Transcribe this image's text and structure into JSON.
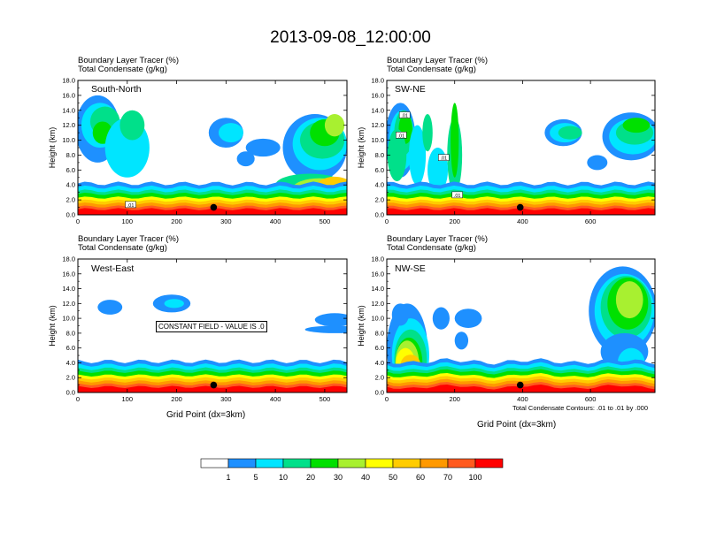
{
  "title": "2013-09-08_12:00:00",
  "panel_subtitle_1": "Boundary Layer Tracer   (%)",
  "panel_subtitle_2": "Total Condensate   (g/kg)",
  "xlabel": "Grid Point (dx=3km)",
  "footnote": "Total Condensate Contours: .01 to .01 by .000",
  "constant_field_text": "CONSTANT FIELD - VALUE IS .0",
  "colorbar": {
    "labels": [
      "1",
      "5",
      "10",
      "20",
      "30",
      "40",
      "50",
      "60",
      "70",
      "100"
    ],
    "colors": [
      "#ffffff",
      "#1e90ff",
      "#00e5ff",
      "#00e08a",
      "#00e000",
      "#a8f030",
      "#ffff00",
      "#ffcc00",
      "#ff9900",
      "#ff5a1f",
      "#ff0000"
    ]
  },
  "chart_data": [
    {
      "type": "heatmap",
      "panel": "South-North",
      "ylabel": "Height (km)",
      "ylim": [
        0,
        18
      ],
      "yticks": [
        "0.0",
        "2.0",
        "4.0",
        "6.0",
        "8.0",
        "10.0",
        "12.0",
        "14.0",
        "16.0",
        "18.0"
      ],
      "xlim": [
        0,
        545
      ],
      "xticks": [
        0,
        100,
        200,
        300,
        400,
        500
      ],
      "marker": {
        "x": 275,
        "y": 1.0
      },
      "contour_labels": [
        ".01"
      ]
    },
    {
      "type": "heatmap",
      "panel": "SW-NE",
      "ylabel": "Height (km)",
      "ylim": [
        0,
        18
      ],
      "yticks": [
        "0.0",
        "2.0",
        "4.0",
        "6.0",
        "8.0",
        "10.0",
        "12.0",
        "14.0",
        "16.0",
        "18.0"
      ],
      "xlim": [
        0,
        790
      ],
      "xticks": [
        0,
        200,
        400,
        600
      ],
      "marker": {
        "x": 393,
        "y": 1.0
      },
      "contour_labels": [
        ".01",
        ".01",
        ".01",
        ".01"
      ]
    },
    {
      "type": "heatmap",
      "panel": "West-East",
      "ylabel": "Height (km)",
      "ylim": [
        0,
        18
      ],
      "yticks": [
        "0.0",
        "2.0",
        "4.0",
        "6.0",
        "8.0",
        "10.0",
        "12.0",
        "14.0",
        "16.0",
        "18.0"
      ],
      "xlim": [
        0,
        545
      ],
      "xticks": [
        0,
        100,
        200,
        300,
        400,
        500
      ],
      "marker": {
        "x": 275,
        "y": 1.0
      },
      "contour_labels": []
    },
    {
      "type": "heatmap",
      "panel": "NW-SE",
      "ylabel": "Height (km)",
      "ylim": [
        0,
        18
      ],
      "yticks": [
        "0.0",
        "2.0",
        "4.0",
        "6.0",
        "8.0",
        "10.0",
        "12.0",
        "14.0",
        "16.0",
        "18.0"
      ],
      "xlim": [
        0,
        790
      ],
      "xticks": [
        0,
        200,
        400,
        600
      ],
      "marker": {
        "x": 393,
        "y": 1.0
      },
      "contour_labels": []
    }
  ]
}
